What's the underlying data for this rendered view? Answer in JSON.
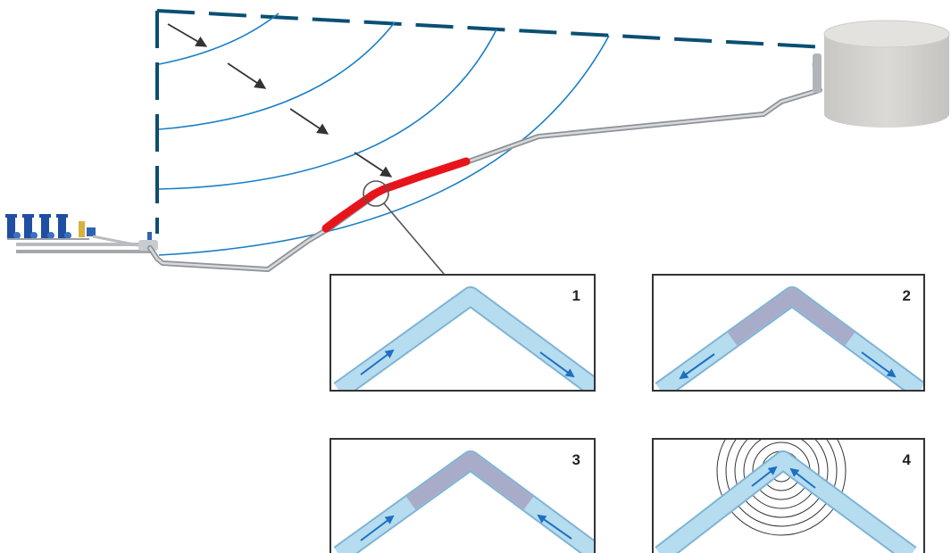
{
  "panels": [
    {
      "number": "1"
    },
    {
      "number": "2"
    },
    {
      "number": "3"
    },
    {
      "number": "4"
    }
  ],
  "colors": {
    "pressure_line": "#0b4f73",
    "wave_front": "#1a7fc4",
    "critical_pipe_section": "#e8141b",
    "flow_arrow": "#1d6fc2",
    "pipe_water": "#b5dcef",
    "vapor_cavity": "#a9acc9",
    "pipe": "#b8bcc0",
    "tank": "#d6d4d0"
  },
  "icons": [
    "pump-station-icon",
    "water-tank-icon",
    "valve-icon"
  ]
}
